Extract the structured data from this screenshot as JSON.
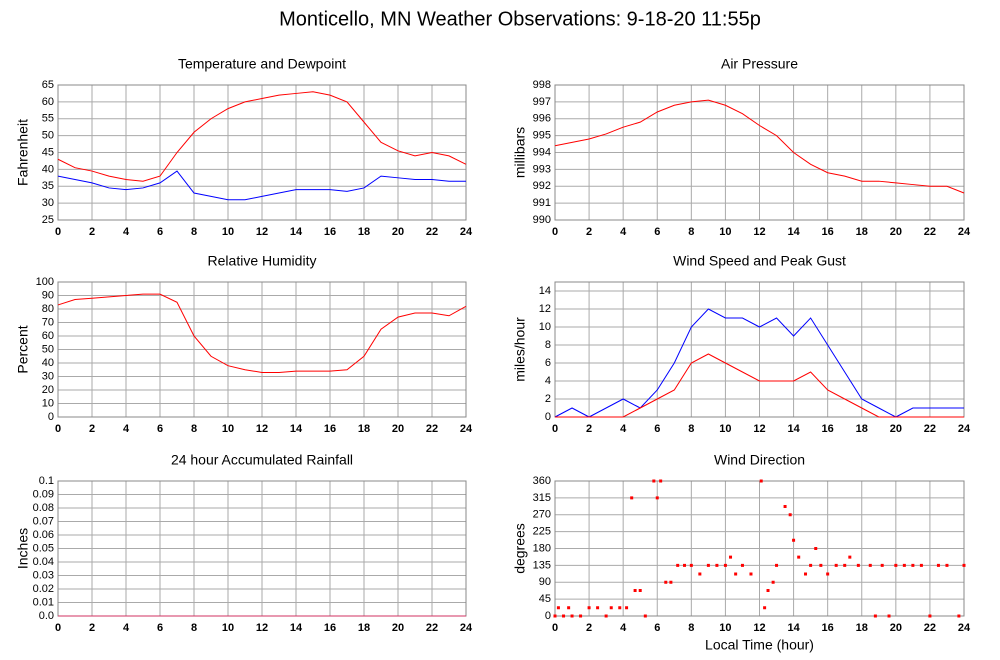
{
  "title": "Monticello, MN Weather Observations: 9-18-20 11:55p",
  "chart_data": [
    {
      "type": "line",
      "title": "Temperature and Dewpoint",
      "ylabel": "Fahrenheit",
      "x": [
        0,
        1,
        2,
        3,
        4,
        5,
        6,
        7,
        8,
        9,
        10,
        11,
        12,
        13,
        14,
        15,
        16,
        17,
        18,
        19,
        20,
        21,
        22,
        23,
        24
      ],
      "series": [
        {
          "color": "#ff0000",
          "values": [
            43,
            40.5,
            39.5,
            38,
            37,
            36.5,
            38,
            45,
            51,
            55,
            58,
            60,
            61,
            62,
            62.5,
            63,
            62,
            60,
            54,
            48,
            45.5,
            44,
            45,
            44,
            41.5
          ]
        },
        {
          "color": "#0000ff",
          "values": [
            38,
            37,
            36,
            34.5,
            34,
            34.5,
            36,
            39.5,
            33,
            32,
            31,
            31,
            32,
            33,
            34,
            34,
            34,
            33.5,
            34.5,
            38,
            37.5,
            37,
            37,
            36.5,
            36.5
          ]
        }
      ],
      "xlim": [
        0,
        24
      ],
      "xticks": [
        0,
        2,
        4,
        6,
        8,
        10,
        12,
        14,
        16,
        18,
        20,
        22,
        24
      ],
      "ylim": [
        25,
        65
      ],
      "yticks": [
        25,
        30,
        35,
        40,
        45,
        50,
        55,
        60,
        65
      ],
      "grid": true
    },
    {
      "type": "line",
      "title": "Air Pressure",
      "ylabel": "millibars",
      "x": [
        0,
        1,
        2,
        3,
        4,
        5,
        6,
        7,
        8,
        9,
        10,
        11,
        12,
        13,
        14,
        15,
        16,
        17,
        18,
        19,
        20,
        21,
        22,
        23,
        24
      ],
      "series": [
        {
          "color": "#ff0000",
          "values": [
            994.4,
            994.6,
            994.8,
            995.1,
            995.5,
            995.8,
            996.4,
            996.8,
            997.0,
            997.1,
            996.8,
            996.3,
            995.6,
            995,
            994,
            993.3,
            992.8,
            992.6,
            992.3,
            992.3,
            992.2,
            992.1,
            992.0,
            992.0,
            991.6
          ]
        }
      ],
      "xlim": [
        0,
        24
      ],
      "xticks": [
        0,
        2,
        4,
        6,
        8,
        10,
        12,
        14,
        16,
        18,
        20,
        22,
        24
      ],
      "ylim": [
        990,
        998
      ],
      "yticks": [
        990,
        991,
        992,
        993,
        994,
        995,
        996,
        997,
        998
      ],
      "grid": true
    },
    {
      "type": "line",
      "title": "Relative Humidity",
      "ylabel": "Percent",
      "x": [
        0,
        1,
        2,
        3,
        4,
        5,
        6,
        7,
        8,
        9,
        10,
        11,
        12,
        13,
        14,
        15,
        16,
        17,
        18,
        19,
        20,
        21,
        22,
        23,
        24
      ],
      "series": [
        {
          "color": "#ff0000",
          "values": [
            83,
            87,
            88,
            89,
            90,
            91,
            91,
            85,
            60,
            45,
            38,
            35,
            33,
            33,
            34,
            34,
            34,
            35,
            45,
            65,
            74,
            77,
            77,
            75,
            82
          ]
        }
      ],
      "xlim": [
        0,
        24
      ],
      "xticks": [
        0,
        2,
        4,
        6,
        8,
        10,
        12,
        14,
        16,
        18,
        20,
        22,
        24
      ],
      "ylim": [
        0,
        100
      ],
      "yticks": [
        0,
        10,
        20,
        30,
        40,
        50,
        60,
        70,
        80,
        90,
        100
      ],
      "grid": true
    },
    {
      "type": "line",
      "title": "Wind Speed and Peak Gust",
      "ylabel": "miles/hour",
      "x": [
        0,
        1,
        2,
        3,
        4,
        5,
        6,
        7,
        8,
        9,
        10,
        11,
        12,
        13,
        14,
        15,
        16,
        17,
        18,
        19,
        20,
        21,
        22,
        23,
        24
      ],
      "series": [
        {
          "color": "#0000ff",
          "values": [
            0,
            1,
            0,
            1,
            2,
            1,
            3,
            6,
            10,
            12,
            11,
            11,
            10,
            11,
            9,
            11,
            8,
            5,
            2,
            1,
            0,
            1,
            1,
            1,
            1
          ]
        },
        {
          "color": "#ff0000",
          "values": [
            0,
            0,
            0,
            0,
            0,
            1,
            2,
            3,
            6,
            7,
            6,
            5,
            4,
            4,
            4,
            5,
            3,
            2,
            1,
            0,
            0,
            0,
            0,
            0,
            0
          ]
        }
      ],
      "xlim": [
        0,
        24
      ],
      "xticks": [
        0,
        2,
        4,
        6,
        8,
        10,
        12,
        14,
        16,
        18,
        20,
        22,
        24
      ],
      "ylim": [
        0,
        15
      ],
      "yticks": [
        0,
        2,
        4,
        6,
        8,
        10,
        12,
        14
      ],
      "grid": true
    },
    {
      "type": "line",
      "title": "24 hour Accumulated Rainfall",
      "ylabel": "Inches",
      "x": [
        0,
        1,
        2,
        3,
        4,
        5,
        6,
        7,
        8,
        9,
        10,
        11,
        12,
        13,
        14,
        15,
        16,
        17,
        18,
        19,
        20,
        21,
        22,
        23,
        24
      ],
      "series": [
        {
          "color": "#d03060",
          "values": [
            0,
            0,
            0,
            0,
            0,
            0,
            0,
            0,
            0,
            0,
            0,
            0,
            0,
            0,
            0,
            0,
            0,
            0,
            0,
            0,
            0,
            0,
            0,
            0,
            0
          ]
        }
      ],
      "xlim": [
        0,
        24
      ],
      "xticks": [
        0,
        2,
        4,
        6,
        8,
        10,
        12,
        14,
        16,
        18,
        20,
        22,
        24
      ],
      "ylim": [
        0,
        0.1
      ],
      "yticks": [
        {
          "value": 0,
          "label": "0.0"
        },
        0.01,
        0.02,
        0.03,
        0.04,
        0.05,
        0.06,
        0.07,
        0.08,
        0.09,
        0.1
      ],
      "grid": true
    },
    {
      "type": "scatter",
      "title": "Wind Direction",
      "ylabel": "degrees",
      "xlabel": "Local Time (hour)",
      "color": "#ff0000",
      "x": [
        0,
        0.2,
        0.5,
        0.8,
        1,
        1.5,
        2,
        2.5,
        3,
        3.3,
        3.8,
        4.2,
        4.5,
        4.7,
        5,
        5.3,
        5.8,
        6,
        6.2,
        6.5,
        6.8,
        7.2,
        7.6,
        8,
        8.5,
        9,
        9.5,
        10,
        10.3,
        10.6,
        11,
        11.5,
        12.1,
        12.3,
        12.5,
        12.8,
        13,
        13.5,
        13.8,
        14,
        14.3,
        14.7,
        15,
        15.3,
        15.6,
        16,
        16.5,
        17,
        17.3,
        17.8,
        18.5,
        18.8,
        19.2,
        19.6,
        20,
        20.5,
        21,
        21.5,
        22,
        22.5,
        23,
        23.7,
        24
      ],
      "values": [
        0,
        22,
        0,
        22,
        0,
        0,
        22,
        22,
        0,
        22,
        22,
        22,
        315,
        68,
        68,
        0,
        360,
        315,
        360,
        90,
        90,
        135,
        135,
        135,
        112,
        135,
        135,
        135,
        157,
        112,
        135,
        112,
        360,
        22,
        68,
        90,
        135,
        292,
        270,
        202,
        157,
        112,
        135,
        180,
        135,
        112,
        135,
        135,
        157,
        135,
        135,
        0,
        135,
        0,
        135,
        135,
        135,
        135,
        0,
        135,
        135,
        0,
        135
      ],
      "xlim": [
        0,
        24
      ],
      "xticks": [
        0,
        2,
        4,
        6,
        8,
        10,
        12,
        14,
        16,
        18,
        20,
        22,
        24
      ],
      "ylim": [
        0,
        360
      ],
      "yticks": [
        0,
        45,
        90,
        135,
        180,
        225,
        270,
        315,
        360
      ],
      "grid": true
    }
  ]
}
